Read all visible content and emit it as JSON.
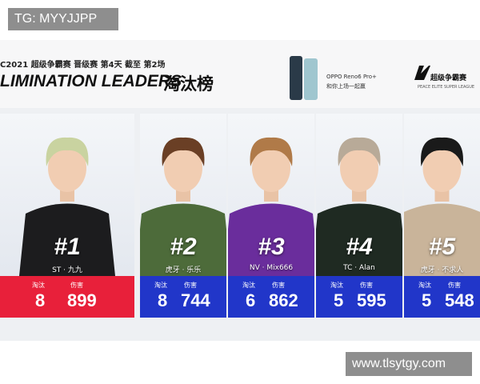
{
  "watermark_top": "TG: MYYJJPP",
  "header": {
    "subtitle": "C2021 超级争霸赛 晋级赛 第4天 截至 第2场",
    "title": "LIMINATION LEADERS",
    "title_cn": "淘汰榜",
    "sponsor": "OPPO Reno6 Pro+",
    "sponsor_slogan": "和你上场一起赢",
    "logo": "超级争霸赛",
    "logo_sub": "PEACE ELITE SUPER LEAGUE"
  },
  "stat_labels": {
    "kills": "淘汰",
    "damage": "伤害"
  },
  "players": [
    {
      "rank": "#1",
      "name": "ST · 九九",
      "kills": 8,
      "damage": 899,
      "jersey_color": "#1c1c1e",
      "hair_color": "#c9d3a0",
      "band_color": "#e8203a"
    },
    {
      "rank": "#2",
      "name": "虎牙 · 乐乐",
      "kills": 8,
      "damage": 744,
      "jersey_color": "#4d6b3a",
      "hair_color": "#6a3f25",
      "band_color": "#2136c9"
    },
    {
      "rank": "#3",
      "name": "NV · Mix666",
      "kills": 6,
      "damage": 862,
      "jersey_color": "#6a2d9c",
      "hair_color": "#b07a48",
      "band_color": "#2136c9"
    },
    {
      "rank": "#4",
      "name": "TC · Alan",
      "kills": 5,
      "damage": 595,
      "jersey_color": "#1f2a22",
      "hair_color": "#b8aa98",
      "band_color": "#2136c9"
    },
    {
      "rank": "#5",
      "name": "虎牙 · 不求人",
      "kills": 5,
      "damage": 548,
      "jersey_color": "#c9b49a",
      "hair_color": "#1a1a1a",
      "band_color": "#2136c9"
    }
  ],
  "watermark_bottom": "www.tlsytgy.com"
}
